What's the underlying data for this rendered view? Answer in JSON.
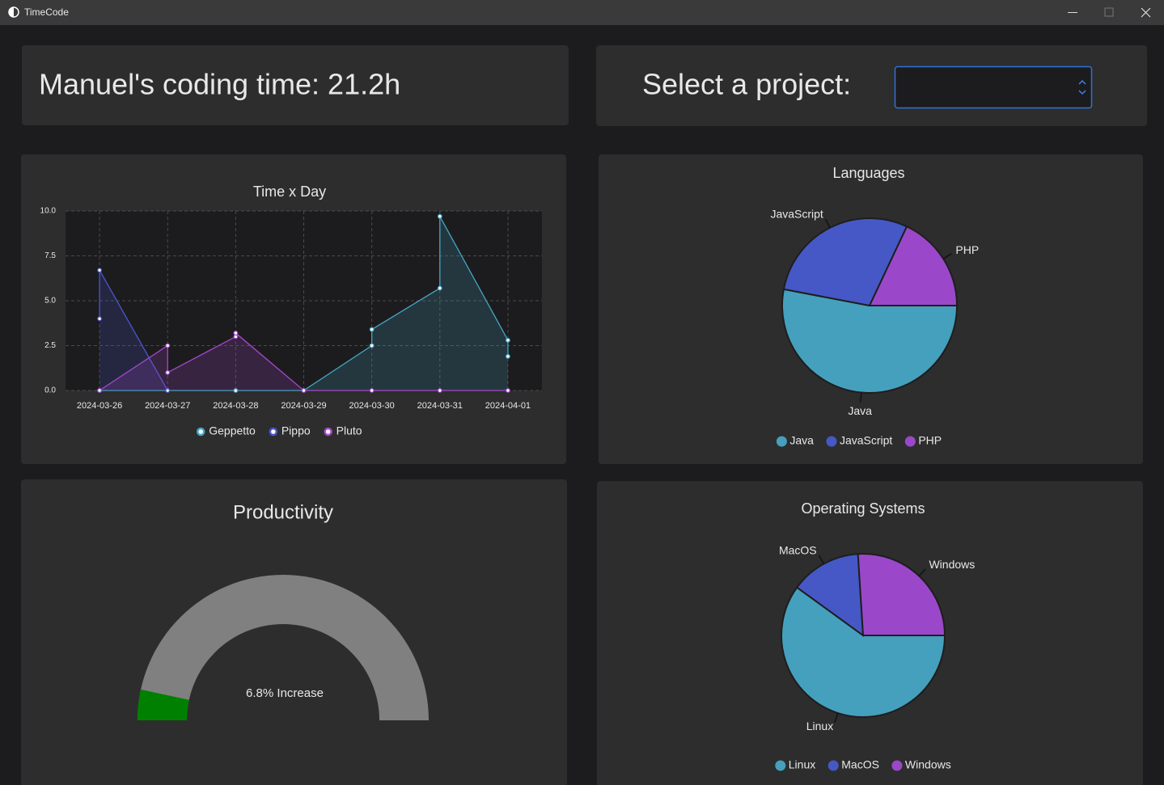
{
  "window": {
    "title": "TimeCode"
  },
  "header": {
    "coding_time": "Manuel's coding time: 21.2h",
    "project_label": "Select a project:"
  },
  "chart_data": [
    {
      "type": "area",
      "title": "Time x Day",
      "categories": [
        "2024-03-26",
        "2024-03-27",
        "2024-03-28",
        "2024-03-29",
        "2024-03-30",
        "2024-03-31",
        "2024-04-01"
      ],
      "series": [
        {
          "name": "Geppetto",
          "color": "#44a6c4",
          "x": [
            "2024-03-26",
            "2024-03-27",
            "2024-03-28",
            "2024-03-29",
            "2024-03-30",
            "2024-03-30",
            "2024-03-31",
            "2024-03-31",
            "2024-04-01",
            "2024-04-01"
          ],
          "values": [
            0,
            0,
            0,
            0,
            2.5,
            3.4,
            5.7,
            9.7,
            2.8,
            1.9
          ]
        },
        {
          "name": "Pippo",
          "color": "#4c55cc",
          "x": [
            "2024-03-26",
            "2024-03-26",
            "2024-03-27"
          ],
          "values": [
            4.0,
            6.7,
            0
          ]
        },
        {
          "name": "Pluto",
          "color": "#a548cc",
          "x": [
            "2024-03-26",
            "2024-03-27",
            "2024-03-27",
            "2024-03-28",
            "2024-03-28",
            "2024-03-29",
            "2024-03-30",
            "2024-03-31",
            "2024-04-01"
          ],
          "values": [
            0,
            2.5,
            1.0,
            3.0,
            3.2,
            0,
            0,
            0,
            0
          ]
        }
      ],
      "ylim": [
        0,
        10
      ],
      "yticks": [
        {
          "value": 0,
          "label": "0.0"
        },
        2.5,
        {
          "value": 5,
          "label": "5.0"
        },
        7.5,
        {
          "value": 10,
          "label": "10.0"
        }
      ],
      "grid": true,
      "legend": "bottom"
    },
    {
      "type": "pie",
      "title": "Languages",
      "categories": [
        "Java",
        "JavaScript",
        "PHP"
      ],
      "values": [
        53,
        29,
        18
      ],
      "colors": [
        "#45a0bd",
        "#4658c6",
        "#9a48c9"
      ],
      "legend": "bottom"
    },
    {
      "type": "gauge",
      "title": "Productivity",
      "values": [
        6.8
      ],
      "value_labels": [
        "6.8% Increase"
      ],
      "ylim": [
        0,
        100
      ],
      "color": "#008000",
      "track_color": "#808080"
    },
    {
      "type": "pie",
      "title": "Operating Systems",
      "categories": [
        "Linux",
        "MacOS",
        "Windows"
      ],
      "values": [
        60,
        14,
        26
      ],
      "colors": [
        "#45a0bd",
        "#4658c6",
        "#9a48c9"
      ],
      "legend": "bottom"
    }
  ]
}
